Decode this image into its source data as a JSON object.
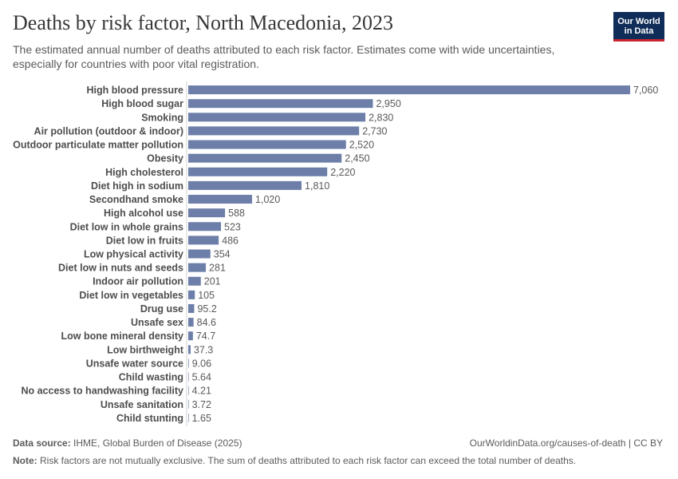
{
  "header": {
    "title": "Deaths by risk factor, North Macedonia, 2023",
    "subtitle": "The estimated annual number of deaths attributed to each risk factor. Estimates come with wide uncertainties, especially for countries with poor vital registration.",
    "logo_line1": "Our World",
    "logo_line2": "in Data"
  },
  "colors": {
    "bar": "#6d7fa8",
    "logo_bg": "#0f2d58",
    "logo_accent": "#c8232f"
  },
  "chart_data": {
    "type": "bar",
    "orientation": "horizontal",
    "title": "Deaths by risk factor, North Macedonia, 2023",
    "xlabel": "",
    "ylabel": "",
    "xlim": [
      0,
      7060
    ],
    "grid": false,
    "categories": [
      "High blood pressure",
      "High blood sugar",
      "Smoking",
      "Air pollution (outdoor & indoor)",
      "Outdoor particulate matter pollution",
      "Obesity",
      "High cholesterol",
      "Diet high in sodium",
      "Secondhand smoke",
      "High alcohol use",
      "Diet low in whole grains",
      "Diet low in fruits",
      "Low physical activity",
      "Diet low in nuts and seeds",
      "Indoor air pollution",
      "Diet low in vegetables",
      "Drug use",
      "Unsafe sex",
      "Low bone mineral density",
      "Low birthweight",
      "Unsafe water source",
      "Child wasting",
      "No access to handwashing facility",
      "Unsafe sanitation",
      "Child stunting"
    ],
    "values": [
      7060,
      2950,
      2830,
      2730,
      2520,
      2450,
      2220,
      1810,
      1020,
      588,
      523,
      486,
      354,
      281,
      201,
      105,
      95.2,
      84.6,
      74.7,
      37.3,
      9.06,
      5.64,
      4.21,
      3.72,
      1.65
    ],
    "value_labels": [
      "7,060",
      "2,950",
      "2,830",
      "2,730",
      "2,520",
      "2,450",
      "2,220",
      "1,810",
      "1,020",
      "588",
      "523",
      "486",
      "354",
      "281",
      "201",
      "105",
      "95.2",
      "84.6",
      "74.7",
      "37.3",
      "9.06",
      "5.64",
      "4.21",
      "3.72",
      "1.65"
    ]
  },
  "footer": {
    "source_label": "Data source:",
    "source_text": "IHME, Global Burden of Disease (2025)",
    "site_text": "OurWorldinData.org/causes-of-death | CC BY",
    "note_label": "Note:",
    "note_text": "Risk factors are not mutually exclusive. The sum of deaths attributed to each risk factor can exceed the total number of deaths."
  }
}
